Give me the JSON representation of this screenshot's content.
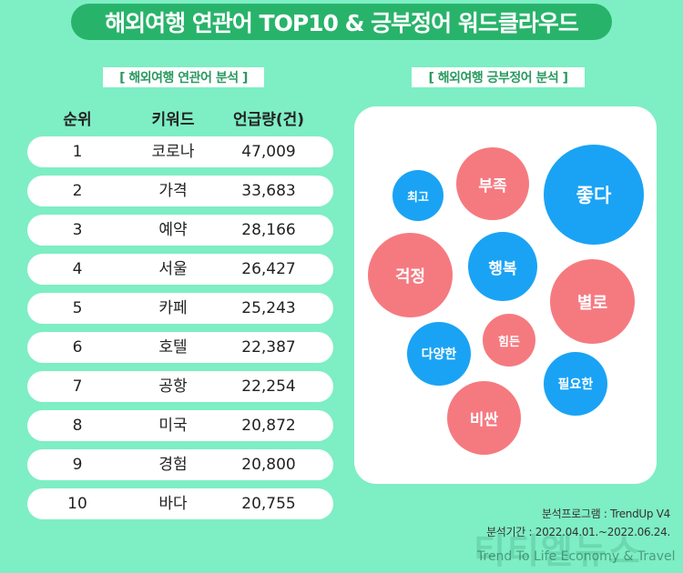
{
  "title": "해외여행 연관어 TOP10 & 긍부정어 워드클라우드",
  "left_section": {
    "label": "[ 해외여행 연관어 분석 ]",
    "headers": {
      "rank": "순위",
      "keyword": "키워드",
      "count": "언급량(건)"
    },
    "rows": [
      {
        "rank": "1",
        "keyword": "코로나",
        "count": "47,009"
      },
      {
        "rank": "2",
        "keyword": "가격",
        "count": "33,683"
      },
      {
        "rank": "3",
        "keyword": "예약",
        "count": "28,166"
      },
      {
        "rank": "4",
        "keyword": "서울",
        "count": "26,427"
      },
      {
        "rank": "5",
        "keyword": "카페",
        "count": "25,243"
      },
      {
        "rank": "6",
        "keyword": "호텔",
        "count": "22,387"
      },
      {
        "rank": "7",
        "keyword": "공항",
        "count": "22,254"
      },
      {
        "rank": "8",
        "keyword": "미국",
        "count": "20,872"
      },
      {
        "rank": "9",
        "keyword": "경험",
        "count": "20,800"
      },
      {
        "rank": "10",
        "keyword": "바다",
        "count": "20,755"
      }
    ]
  },
  "right_section": {
    "label": "[ 해외여행 긍부정어 분석 ]",
    "bubbles": [
      {
        "word": "최고",
        "sentiment": "positive"
      },
      {
        "word": "부족",
        "sentiment": "negative"
      },
      {
        "word": "좋다",
        "sentiment": "positive"
      },
      {
        "word": "걱정",
        "sentiment": "negative"
      },
      {
        "word": "행복",
        "sentiment": "positive"
      },
      {
        "word": "별로",
        "sentiment": "negative"
      },
      {
        "word": "다양한",
        "sentiment": "positive"
      },
      {
        "word": "힘든",
        "sentiment": "negative"
      },
      {
        "word": "필요한",
        "sentiment": "positive"
      },
      {
        "word": "비싼",
        "sentiment": "negative"
      }
    ],
    "colors": {
      "positive": "#1aa3f4",
      "negative": "#f57a80"
    }
  },
  "footer": {
    "program": "분석프로그램 : TrendUp V4",
    "period": "분석기간 : 2022.04.01.~2022.06.24.",
    "watermark": "티티엘뉴스",
    "watermark_sub": "Trend To Life Economy & Travel"
  }
}
